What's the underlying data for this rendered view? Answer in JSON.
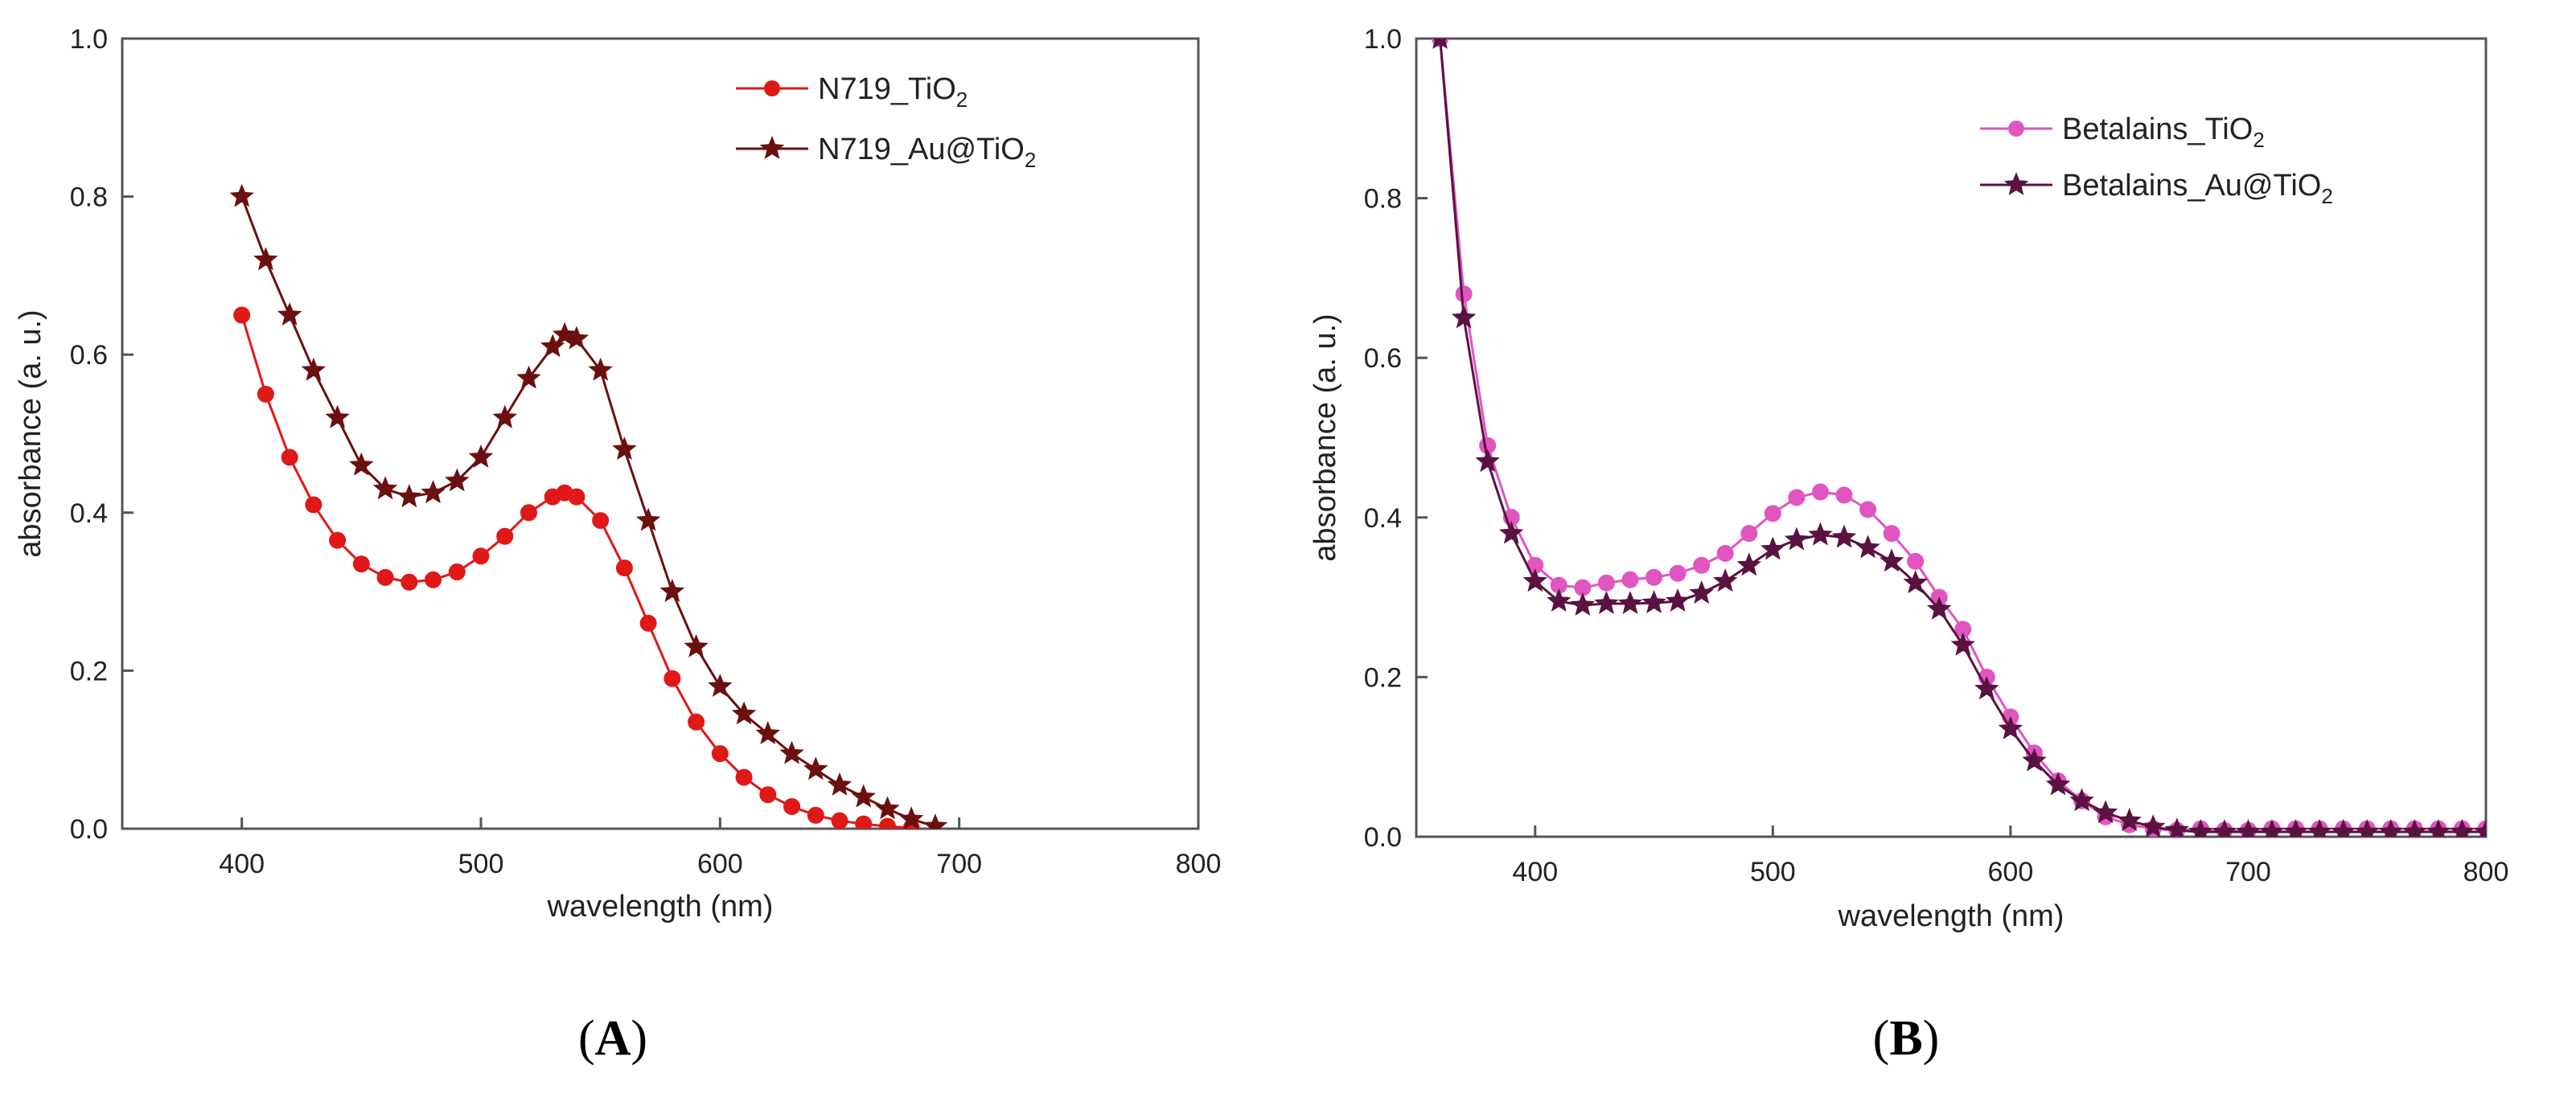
{
  "chart_data": [
    {
      "type": "line",
      "panel_label": "A",
      "title": "",
      "xlabel": "wavelength (nm)",
      "ylabel": "absorbance (a. u.)",
      "xlim": [
        350,
        800
      ],
      "ylim": [
        0.0,
        1.0
      ],
      "xticks": [
        "400",
        "500",
        "600",
        "700",
        "800"
      ],
      "yticks": [
        "0.0",
        "0.2",
        "0.4",
        "0.6",
        "0.8",
        "1.0"
      ],
      "legend_position": "top-right",
      "series": [
        {
          "name_main": "N719_TiO",
          "name_sub": "2",
          "name_tail": "",
          "color": "#e01818",
          "marker": "circle",
          "x": [
            400,
            410,
            420,
            430,
            440,
            450,
            460,
            470,
            480,
            490,
            500,
            510,
            520,
            530,
            535,
            540,
            550,
            560,
            570,
            580,
            590,
            600,
            610,
            620,
            630,
            640,
            650,
            660,
            670,
            680
          ],
          "y": [
            0.65,
            0.55,
            0.47,
            0.41,
            0.365,
            0.335,
            0.318,
            0.312,
            0.315,
            0.325,
            0.345,
            0.37,
            0.4,
            0.42,
            0.425,
            0.42,
            0.39,
            0.33,
            0.26,
            0.19,
            0.135,
            0.095,
            0.065,
            0.043,
            0.028,
            0.017,
            0.01,
            0.006,
            0.003,
            0.001
          ]
        },
        {
          "name_main": "N719_Au@TiO",
          "name_sub": "2",
          "name_tail": "",
          "color": "#6b0f0f",
          "marker": "star",
          "x": [
            400,
            410,
            420,
            430,
            440,
            450,
            460,
            470,
            480,
            490,
            500,
            510,
            520,
            530,
            535,
            540,
            550,
            560,
            570,
            580,
            590,
            600,
            610,
            620,
            630,
            640,
            650,
            660,
            670,
            680,
            690
          ],
          "y": [
            0.8,
            0.72,
            0.65,
            0.58,
            0.52,
            0.46,
            0.43,
            0.42,
            0.425,
            0.44,
            0.47,
            0.52,
            0.57,
            0.61,
            0.625,
            0.62,
            0.58,
            0.48,
            0.39,
            0.3,
            0.23,
            0.18,
            0.145,
            0.12,
            0.095,
            0.075,
            0.055,
            0.04,
            0.025,
            0.012,
            0.003
          ]
        }
      ]
    },
    {
      "type": "line",
      "panel_label": "B",
      "title": "",
      "xlabel": "wavelength (nm)",
      "ylabel": "absorbance (a. u.)",
      "xlim": [
        350,
        800
      ],
      "ylim": [
        0.0,
        1.0
      ],
      "xticks": [
        "400",
        "500",
        "600",
        "700",
        "800"
      ],
      "yticks": [
        "0.0",
        "0.2",
        "0.4",
        "0.6",
        "0.8",
        "1.0"
      ],
      "legend_position": "top-right",
      "series": [
        {
          "name_main": "Betalains_TiO",
          "name_sub": "2",
          "name_tail": "",
          "color": "#e055c0",
          "marker": "circle",
          "x": [
            360,
            370,
            380,
            390,
            400,
            410,
            420,
            430,
            440,
            450,
            460,
            470,
            480,
            490,
            500,
            510,
            520,
            530,
            540,
            550,
            560,
            570,
            580,
            590,
            600,
            610,
            620,
            630,
            640,
            650,
            660,
            670,
            680,
            690,
            700,
            710,
            720,
            730,
            740,
            750,
            760,
            770,
            780,
            790,
            800
          ],
          "y": [
            1.0,
            0.68,
            0.49,
            0.4,
            0.34,
            0.315,
            0.312,
            0.318,
            0.322,
            0.325,
            0.33,
            0.34,
            0.355,
            0.38,
            0.405,
            0.425,
            0.432,
            0.428,
            0.41,
            0.38,
            0.345,
            0.3,
            0.26,
            0.2,
            0.15,
            0.105,
            0.07,
            0.045,
            0.025,
            0.015,
            0.01,
            0.008,
            0.01,
            0.008,
            0.008,
            0.01,
            0.01,
            0.01,
            0.01,
            0.01,
            0.01,
            0.01,
            0.01,
            0.01,
            0.01
          ]
        },
        {
          "name_main": "Betalains_Au@TiO",
          "name_sub": "2",
          "name_tail": "",
          "color": "#5a1240",
          "marker": "star",
          "x": [
            360,
            370,
            380,
            390,
            400,
            410,
            420,
            430,
            440,
            450,
            460,
            470,
            480,
            490,
            500,
            510,
            520,
            530,
            540,
            550,
            560,
            570,
            580,
            590,
            600,
            610,
            620,
            630,
            640,
            650,
            660,
            670,
            680,
            690,
            700,
            710,
            720,
            730,
            740,
            750,
            760,
            770,
            780,
            790,
            800
          ],
          "y": [
            1.0,
            0.65,
            0.47,
            0.38,
            0.32,
            0.295,
            0.29,
            0.292,
            0.292,
            0.293,
            0.295,
            0.305,
            0.32,
            0.34,
            0.36,
            0.372,
            0.378,
            0.375,
            0.362,
            0.345,
            0.318,
            0.285,
            0.24,
            0.185,
            0.135,
            0.095,
            0.065,
            0.045,
            0.03,
            0.02,
            0.012,
            0.008,
            0.006,
            0.006,
            0.006,
            0.006,
            0.006,
            0.006,
            0.006,
            0.006,
            0.006,
            0.006,
            0.006,
            0.006,
            0.006
          ]
        }
      ]
    }
  ]
}
